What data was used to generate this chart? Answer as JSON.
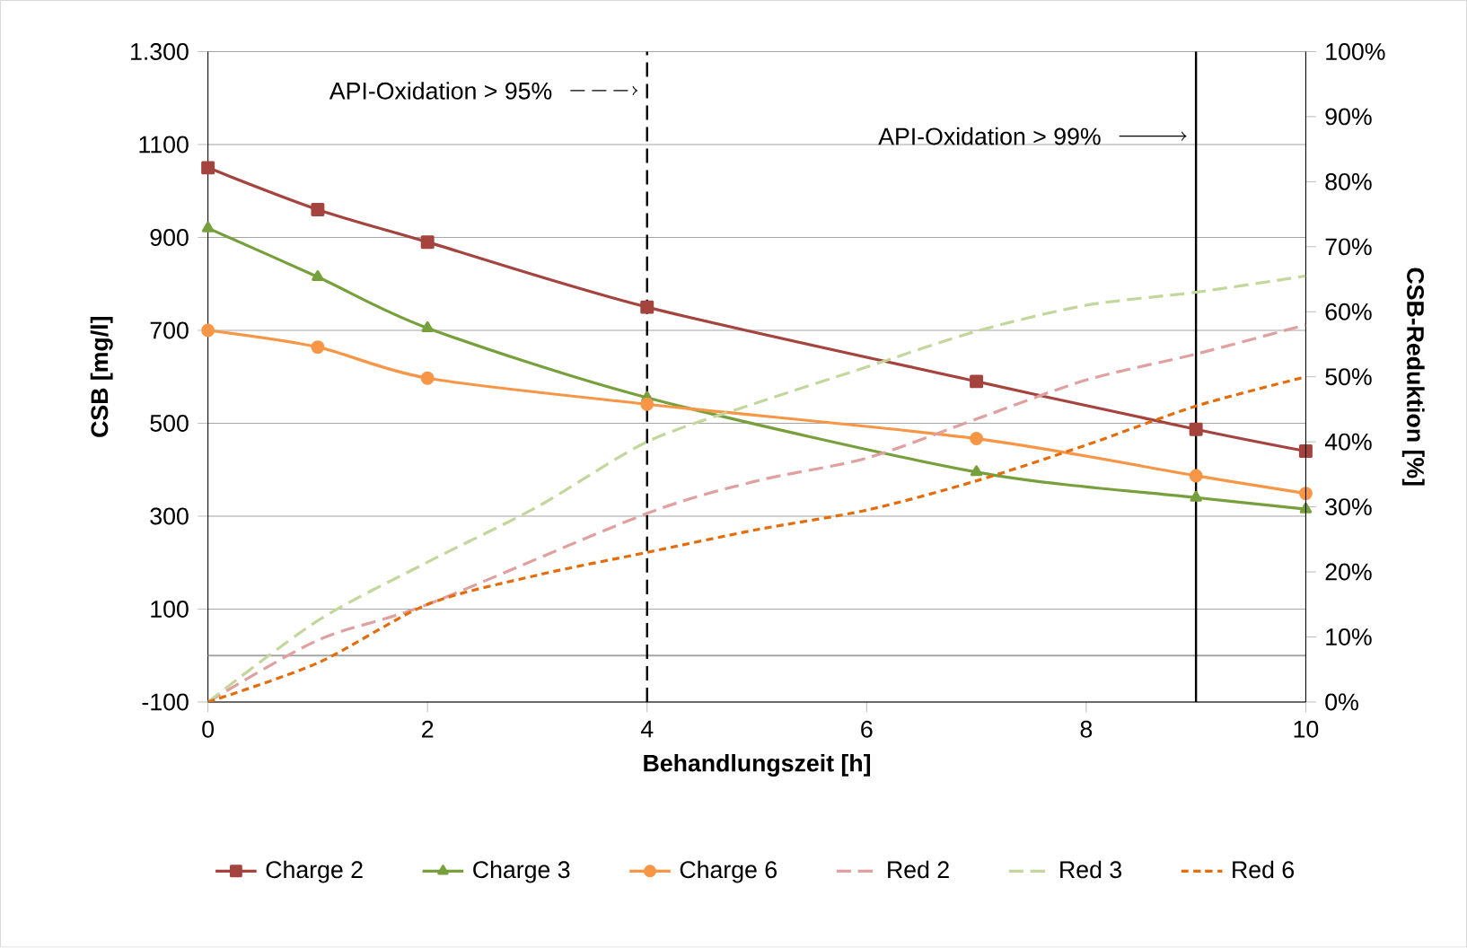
{
  "chart_data": {
    "type": "line",
    "xlabel": "Behandlungszeit [h]",
    "ylabel": "CSB [mg/l]",
    "y2label": "CSB-Reduktion [%]",
    "xlim": [
      0,
      10
    ],
    "xticks": [
      0,
      2,
      4,
      6,
      8,
      10
    ],
    "ylim": [
      -100,
      1300
    ],
    "yticks": [
      -100,
      100,
      300,
      500,
      700,
      900,
      1100,
      {
        "value": 1300,
        "label": "1.300"
      }
    ],
    "y2lim": [
      0,
      100
    ],
    "y2ticks": [
      {
        "value": 0,
        "label": "0%"
      },
      {
        "value": 10,
        "label": "10%"
      },
      {
        "value": 20,
        "label": "20%"
      },
      {
        "value": 30,
        "label": "30%"
      },
      {
        "value": 40,
        "label": "40%"
      },
      {
        "value": 50,
        "label": "50%"
      },
      {
        "value": 60,
        "label": "60%"
      },
      {
        "value": 70,
        "label": "70%"
      },
      {
        "value": 80,
        "label": "80%"
      },
      {
        "value": 90,
        "label": "90%"
      },
      {
        "value": 100,
        "label": "100%"
      }
    ],
    "grid": "y",
    "legend": "bottom",
    "ref_lines": [
      {
        "axis": "y",
        "value": 0,
        "color": "#a6a6a6"
      },
      {
        "axis": "x",
        "value": 4,
        "label": "API-Oxidation > 95%",
        "line_style": "dashed",
        "color": "#000000"
      },
      {
        "axis": "x",
        "value": 9,
        "label": "API-Oxidation > 99%",
        "line_style": "solid",
        "color": "#000000"
      }
    ],
    "series": [
      {
        "name": "Charge 2",
        "color": "#a5433f",
        "marker": "square",
        "line_style": "solid",
        "x": [
          0,
          1,
          2,
          4,
          7,
          9,
          10
        ],
        "values": [
          1050,
          960,
          890,
          750,
          590,
          487,
          440
        ]
      },
      {
        "name": "Charge 3",
        "color": "#77a03d",
        "marker": "triangle",
        "line_style": "solid",
        "x": [
          0,
          1,
          2,
          4,
          7,
          9,
          10
        ],
        "values": [
          920,
          815,
          705,
          555,
          395,
          340,
          315
        ]
      },
      {
        "name": "Charge 6",
        "color": "#f79646",
        "marker": "circle",
        "line_style": "solid",
        "x": [
          0,
          1,
          2,
          4,
          7,
          9,
          10
        ],
        "values": [
          700,
          664,
          597,
          541,
          467,
          387,
          349
        ]
      },
      {
        "name": "Red 2",
        "color": "#e0a0a0",
        "marker": "none",
        "line_style": "dashed",
        "axis": "y2",
        "x": [
          0,
          1,
          2,
          4,
          5,
          6,
          7,
          8,
          9,
          10
        ],
        "values": [
          0,
          9.5,
          15,
          29,
          34,
          37.5,
          43.5,
          49.5,
          53.5,
          58
        ]
      },
      {
        "name": "Red 3",
        "color": "#c3d69b",
        "marker": "none",
        "line_style": "dashed",
        "axis": "y2",
        "x": [
          0,
          1,
          2,
          3,
          4,
          5,
          6,
          7,
          8,
          9,
          10
        ],
        "values": [
          0,
          12.5,
          21.5,
          30,
          40,
          46,
          51.5,
          57,
          61,
          63,
          65.5
        ]
      },
      {
        "name": "Red 6",
        "color": "#e46c0a",
        "marker": "none",
        "line_style": "dotted",
        "axis": "y2",
        "x": [
          0,
          1,
          2,
          3,
          4,
          5,
          6,
          7,
          8,
          9,
          10
        ],
        "values": [
          0,
          6,
          15,
          19.5,
          23,
          26.5,
          29.5,
          34,
          39.5,
          45.5,
          50
        ]
      }
    ]
  }
}
